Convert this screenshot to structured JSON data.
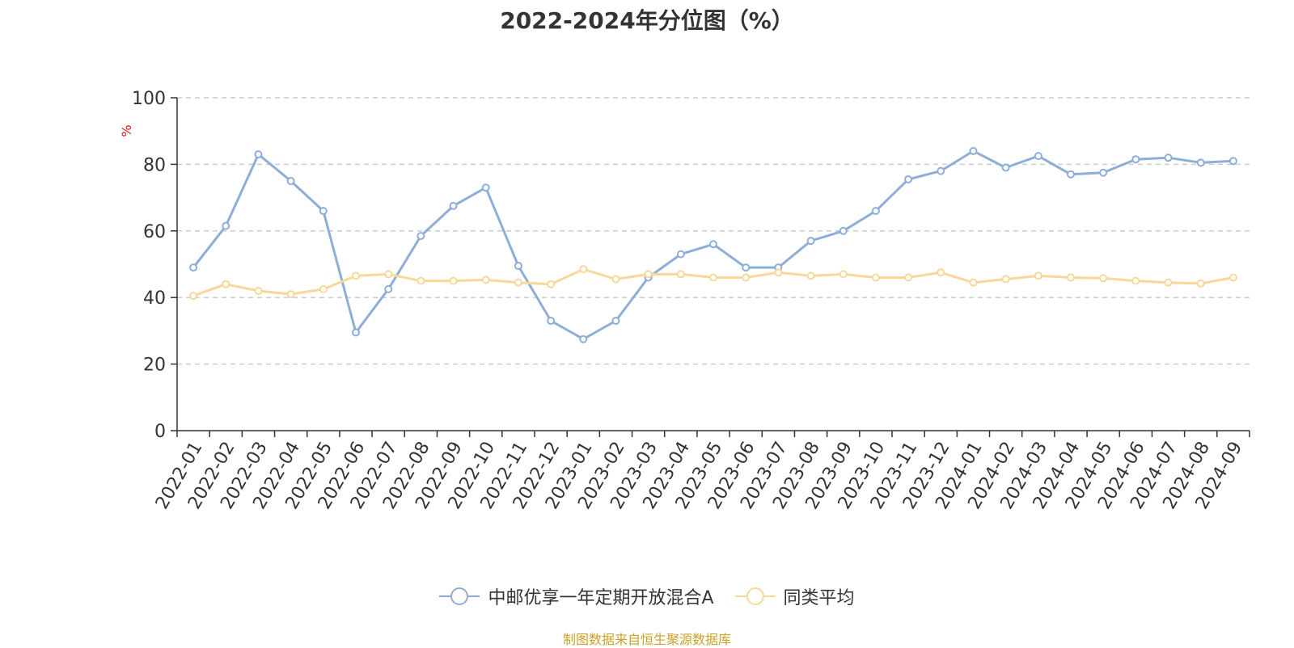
{
  "chart_data": {
    "type": "line",
    "title": "2022-2024年分位图（%）",
    "ylabel": "%",
    "xlabel": "",
    "ylim": [
      0,
      100
    ],
    "yticks": [
      0,
      20,
      40,
      60,
      80,
      100
    ],
    "grid": true,
    "legend_position": "bottom",
    "categories": [
      "2022-01",
      "2022-02",
      "2022-03",
      "2022-04",
      "2022-05",
      "2022-06",
      "2022-07",
      "2022-08",
      "2022-09",
      "2022-10",
      "2022-11",
      "2022-12",
      "2023-01",
      "2023-02",
      "2023-03",
      "2023-04",
      "2023-05",
      "2023-06",
      "2023-07",
      "2023-08",
      "2023-09",
      "2023-10",
      "2023-11",
      "2023-12",
      "2024-01",
      "2024-02",
      "2024-03",
      "2024-04",
      "2024-05",
      "2024-06",
      "2024-07",
      "2024-08",
      "2024-09"
    ],
    "series": [
      {
        "name": "中邮优享一年定期开放混合A",
        "color": "#8eaed8",
        "values": [
          49,
          61.5,
          83,
          75,
          66,
          29.5,
          42.5,
          58.5,
          67.5,
          73,
          49.5,
          33,
          27.5,
          33,
          46,
          53,
          56,
          49,
          49,
          57,
          60,
          66,
          75.5,
          78,
          84,
          79,
          82.5,
          77,
          77.5,
          81.5,
          82,
          80.5,
          81
        ]
      },
      {
        "name": "同类平均",
        "color": "#f8d898",
        "values": [
          40.5,
          44,
          42,
          41,
          42.5,
          46.5,
          47,
          45,
          45,
          45.3,
          44.5,
          44,
          48.5,
          45.5,
          47,
          47,
          46,
          46,
          47.5,
          46.5,
          47,
          46,
          46,
          47.5,
          44.5,
          45.5,
          46.5,
          46,
          45.8,
          45,
          44.5,
          44.2,
          46
        ]
      }
    ]
  },
  "source_note": "制图数据来自恒生聚源数据库"
}
